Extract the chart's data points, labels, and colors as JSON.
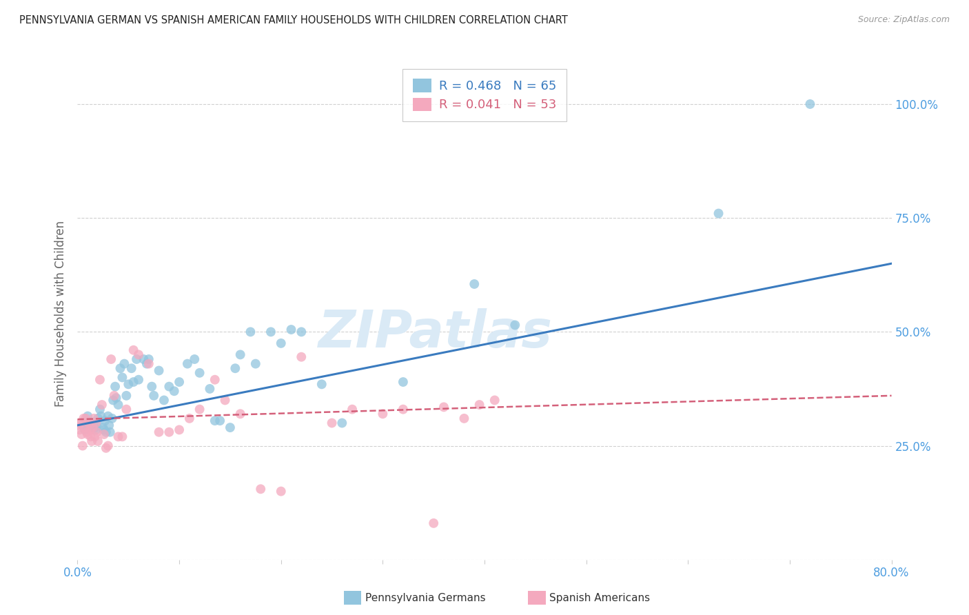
{
  "title": "PENNSYLVANIA GERMAN VS SPANISH AMERICAN FAMILY HOUSEHOLDS WITH CHILDREN CORRELATION CHART",
  "source": "Source: ZipAtlas.com",
  "ylabel": "Family Households with Children",
  "xlim": [
    0.0,
    0.8
  ],
  "ylim": [
    0.0,
    1.08
  ],
  "xticks": [
    0.0,
    0.1,
    0.2,
    0.3,
    0.4,
    0.5,
    0.6,
    0.7,
    0.8
  ],
  "xticklabels": [
    "0.0%",
    "",
    "",
    "",
    "",
    "",
    "",
    "",
    "80.0%"
  ],
  "ytick_positions": [
    0.0,
    0.25,
    0.5,
    0.75,
    1.0
  ],
  "ytick_labels": [
    "",
    "25.0%",
    "50.0%",
    "75.0%",
    "100.0%"
  ],
  "blue_color": "#92c5de",
  "pink_color": "#f4a9be",
  "blue_line_color": "#3a7bbf",
  "pink_line_color": "#d4607a",
  "grid_color": "#d0d0d0",
  "background_color": "#ffffff",
  "watermark_text": "ZIPatlas",
  "watermark_color": "#daeaf6",
  "legend_blue_R": "R = 0.468",
  "legend_blue_N": "N = 65",
  "legend_pink_R": "R = 0.041",
  "legend_pink_N": "N = 53",
  "blue_x": [
    0.005,
    0.007,
    0.01,
    0.012,
    0.015,
    0.015,
    0.017,
    0.018,
    0.019,
    0.02,
    0.022,
    0.023,
    0.025,
    0.026,
    0.027,
    0.028,
    0.03,
    0.031,
    0.032,
    0.034,
    0.035,
    0.037,
    0.038,
    0.04,
    0.042,
    0.044,
    0.046,
    0.048,
    0.05,
    0.053,
    0.055,
    0.058,
    0.06,
    0.065,
    0.068,
    0.07,
    0.073,
    0.075,
    0.08,
    0.085,
    0.09,
    0.095,
    0.1,
    0.108,
    0.115,
    0.12,
    0.13,
    0.135,
    0.14,
    0.15,
    0.155,
    0.16,
    0.17,
    0.175,
    0.19,
    0.2,
    0.21,
    0.22,
    0.24,
    0.26,
    0.32,
    0.39,
    0.43,
    0.63,
    0.72
  ],
  "blue_y": [
    0.295,
    0.285,
    0.315,
    0.3,
    0.3,
    0.29,
    0.29,
    0.285,
    0.295,
    0.31,
    0.33,
    0.315,
    0.29,
    0.285,
    0.305,
    0.28,
    0.315,
    0.295,
    0.28,
    0.31,
    0.35,
    0.38,
    0.355,
    0.34,
    0.42,
    0.4,
    0.43,
    0.36,
    0.385,
    0.42,
    0.39,
    0.44,
    0.395,
    0.44,
    0.43,
    0.44,
    0.38,
    0.36,
    0.415,
    0.35,
    0.38,
    0.37,
    0.39,
    0.43,
    0.44,
    0.41,
    0.375,
    0.305,
    0.305,
    0.29,
    0.42,
    0.45,
    0.5,
    0.43,
    0.5,
    0.475,
    0.505,
    0.5,
    0.385,
    0.3,
    0.39,
    0.605,
    0.515,
    0.76,
    1.0
  ],
  "pink_x": [
    0.001,
    0.002,
    0.003,
    0.004,
    0.005,
    0.006,
    0.007,
    0.008,
    0.009,
    0.01,
    0.011,
    0.012,
    0.013,
    0.014,
    0.015,
    0.016,
    0.017,
    0.018,
    0.019,
    0.02,
    0.022,
    0.024,
    0.026,
    0.028,
    0.03,
    0.033,
    0.036,
    0.04,
    0.044,
    0.048,
    0.055,
    0.06,
    0.07,
    0.08,
    0.09,
    0.1,
    0.11,
    0.12,
    0.135,
    0.145,
    0.16,
    0.18,
    0.2,
    0.22,
    0.25,
    0.27,
    0.3,
    0.32,
    0.35,
    0.36,
    0.38,
    0.395,
    0.41
  ],
  "pink_y": [
    0.295,
    0.285,
    0.3,
    0.275,
    0.25,
    0.31,
    0.29,
    0.31,
    0.28,
    0.275,
    0.3,
    0.285,
    0.27,
    0.26,
    0.29,
    0.31,
    0.27,
    0.3,
    0.28,
    0.26,
    0.395,
    0.34,
    0.275,
    0.245,
    0.25,
    0.44,
    0.36,
    0.27,
    0.27,
    0.33,
    0.46,
    0.45,
    0.43,
    0.28,
    0.28,
    0.285,
    0.31,
    0.33,
    0.395,
    0.35,
    0.32,
    0.155,
    0.15,
    0.445,
    0.3,
    0.33,
    0.32,
    0.33,
    0.08,
    0.335,
    0.31,
    0.34,
    0.35
  ],
  "blue_line_x0": 0.0,
  "blue_line_y0": 0.295,
  "blue_line_x1": 0.8,
  "blue_line_y1": 0.65,
  "pink_line_x0": 0.0,
  "pink_line_y0": 0.308,
  "pink_line_x1": 0.8,
  "pink_line_y1": 0.36
}
